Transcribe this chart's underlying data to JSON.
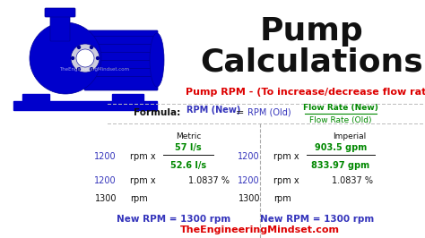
{
  "title_line1": "Pump",
  "title_line2": "Calculations",
  "subtitle": "Pump RPM - (To increase/decrease flow rate)",
  "formula_label": "Formula:",
  "formula_rpm_new": "RPM (New)",
  "formula_equals": "=",
  "formula_rpm_old": "RPM (Old)",
  "formula_flow_new": "Flow Rate (New)",
  "formula_flow_old": "Flow Rate (Old)",
  "col_metric": "Metric",
  "col_imperial": "Imperial",
  "metric_num": "57 l/s",
  "metric_den": "52.6 l/s",
  "imperial_num": "903.5 gpm",
  "imperial_den": "833.97 gpm",
  "ratio": "1.0837 %",
  "rpm_old": "1200",
  "rpm_new": "1300",
  "new_rpm_label": "New RPM = 1300 rpm",
  "website": "TheEngineeringMindset.com",
  "bg_color": "#ffffff",
  "title_color": "#000000",
  "subtitle_color": "#dd0000",
  "green": "#008800",
  "blue": "#3333bb",
  "black": "#111111",
  "website_color": "#dd0000",
  "divider_color": "#bbbbbb",
  "pump_blue": "#0000cc",
  "pump_dark": "#000099"
}
